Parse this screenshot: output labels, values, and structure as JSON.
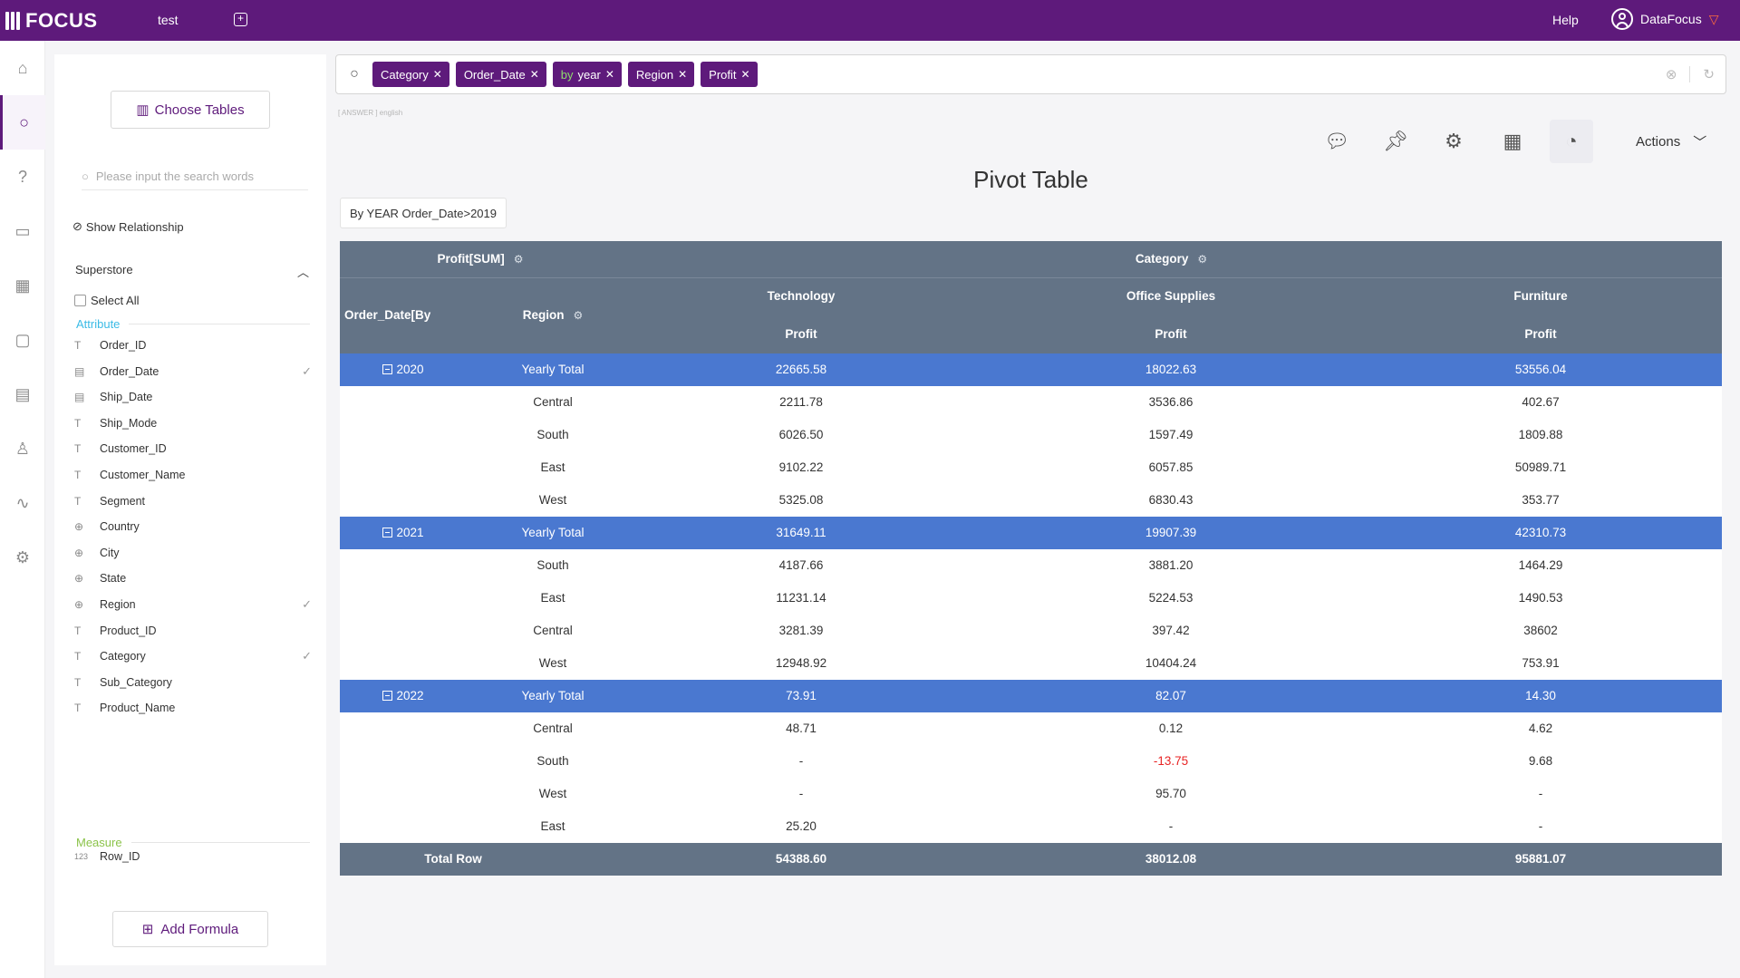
{
  "app": {
    "logo": "FOCUS",
    "tab_name": "test",
    "help": "Help",
    "user": "DataFocus"
  },
  "sidebar": {
    "choose_tables": "Choose Tables",
    "search_placeholder": "Please input the search words",
    "show_relationship": "Show Relationship",
    "table_name": "Superstore",
    "select_all": "Select All",
    "attribute_label": "Attribute",
    "measure_label": "Measure",
    "attributes": [
      {
        "name": "Order_ID",
        "icon": "text-icon",
        "checked": false
      },
      {
        "name": "Order_Date",
        "icon": "date-icon",
        "checked": true
      },
      {
        "name": "Ship_Date",
        "icon": "date-icon",
        "checked": false
      },
      {
        "name": "Ship_Mode",
        "icon": "text-icon",
        "checked": false
      },
      {
        "name": "Customer_ID",
        "icon": "text-icon",
        "checked": false
      },
      {
        "name": "Customer_Name",
        "icon": "text-icon",
        "checked": false
      },
      {
        "name": "Segment",
        "icon": "text-icon",
        "checked": false
      },
      {
        "name": "Country",
        "icon": "globe-icon",
        "checked": false
      },
      {
        "name": "City",
        "icon": "globe-icon",
        "checked": false
      },
      {
        "name": "State",
        "icon": "globe-icon",
        "checked": false
      },
      {
        "name": "Region",
        "icon": "globe-icon",
        "checked": true
      },
      {
        "name": "Product_ID",
        "icon": "text-icon",
        "checked": false
      },
      {
        "name": "Category",
        "icon": "text-icon",
        "checked": true
      },
      {
        "name": "Sub_Category",
        "icon": "text-icon",
        "checked": false
      },
      {
        "name": "Product_Name",
        "icon": "text-icon",
        "checked": false
      }
    ],
    "measures": [
      {
        "name": "Row_ID",
        "icon": "number-icon",
        "icon_text": "123",
        "checked": false
      }
    ],
    "add_formula": "Add Formula"
  },
  "search": {
    "tokens": [
      {
        "text": "Category"
      },
      {
        "text": "Order_Date"
      },
      {
        "kw": "by",
        "text": "year"
      },
      {
        "text": "Region"
      },
      {
        "text": "Profit"
      }
    ],
    "answer_tag": "[ ANSWER ] english"
  },
  "toolbar": {
    "actions": "Actions"
  },
  "main": {
    "title": "Pivot Table",
    "filter": "By YEAR Order_Date>2019"
  },
  "pivot": {
    "measure_header": "Profit[SUM]",
    "column_field": "Category",
    "row_field_1": "Order_Date[By YEAR]",
    "row_field_2": "Region",
    "categories": [
      "Technology",
      "Office Supplies",
      "Furniture"
    ],
    "value_label": "Profit",
    "groups": [
      {
        "year": "2020",
        "total_label": "Yearly Total",
        "totals": [
          "22665.58",
          "18022.63",
          "53556.04"
        ],
        "rows": [
          {
            "region": "Central",
            "values": [
              "2211.78",
              "3536.86",
              "402.67"
            ]
          },
          {
            "region": "South",
            "values": [
              "6026.50",
              "1597.49",
              "1809.88"
            ]
          },
          {
            "region": "East",
            "values": [
              "9102.22",
              "6057.85",
              "50989.71"
            ]
          },
          {
            "region": "West",
            "values": [
              "5325.08",
              "6830.43",
              "353.77"
            ]
          }
        ]
      },
      {
        "year": "2021",
        "total_label": "Yearly Total",
        "totals": [
          "31649.11",
          "19907.39",
          "42310.73"
        ],
        "rows": [
          {
            "region": "South",
            "values": [
              "4187.66",
              "3881.20",
              "1464.29"
            ]
          },
          {
            "region": "East",
            "values": [
              "11231.14",
              "5224.53",
              "1490.53"
            ]
          },
          {
            "region": "Central",
            "values": [
              "3281.39",
              "397.42",
              "38602"
            ]
          },
          {
            "region": "West",
            "values": [
              "12948.92",
              "10404.24",
              "753.91"
            ]
          }
        ]
      },
      {
        "year": "2022",
        "total_label": "Yearly Total",
        "totals": [
          "73.91",
          "82.07",
          "14.30"
        ],
        "rows": [
          {
            "region": "Central",
            "values": [
              "48.71",
              "0.12",
              "4.62"
            ]
          },
          {
            "region": "South",
            "values": [
              "-",
              "-13.75",
              "9.68"
            ]
          },
          {
            "region": "West",
            "values": [
              "-",
              "95.70",
              "-"
            ]
          },
          {
            "region": "East",
            "values": [
              "25.20",
              "-",
              "-"
            ]
          }
        ]
      }
    ],
    "grand_total_label": "Total Row",
    "grand_totals": [
      "54388.60",
      "38012.08",
      "95881.07"
    ]
  }
}
